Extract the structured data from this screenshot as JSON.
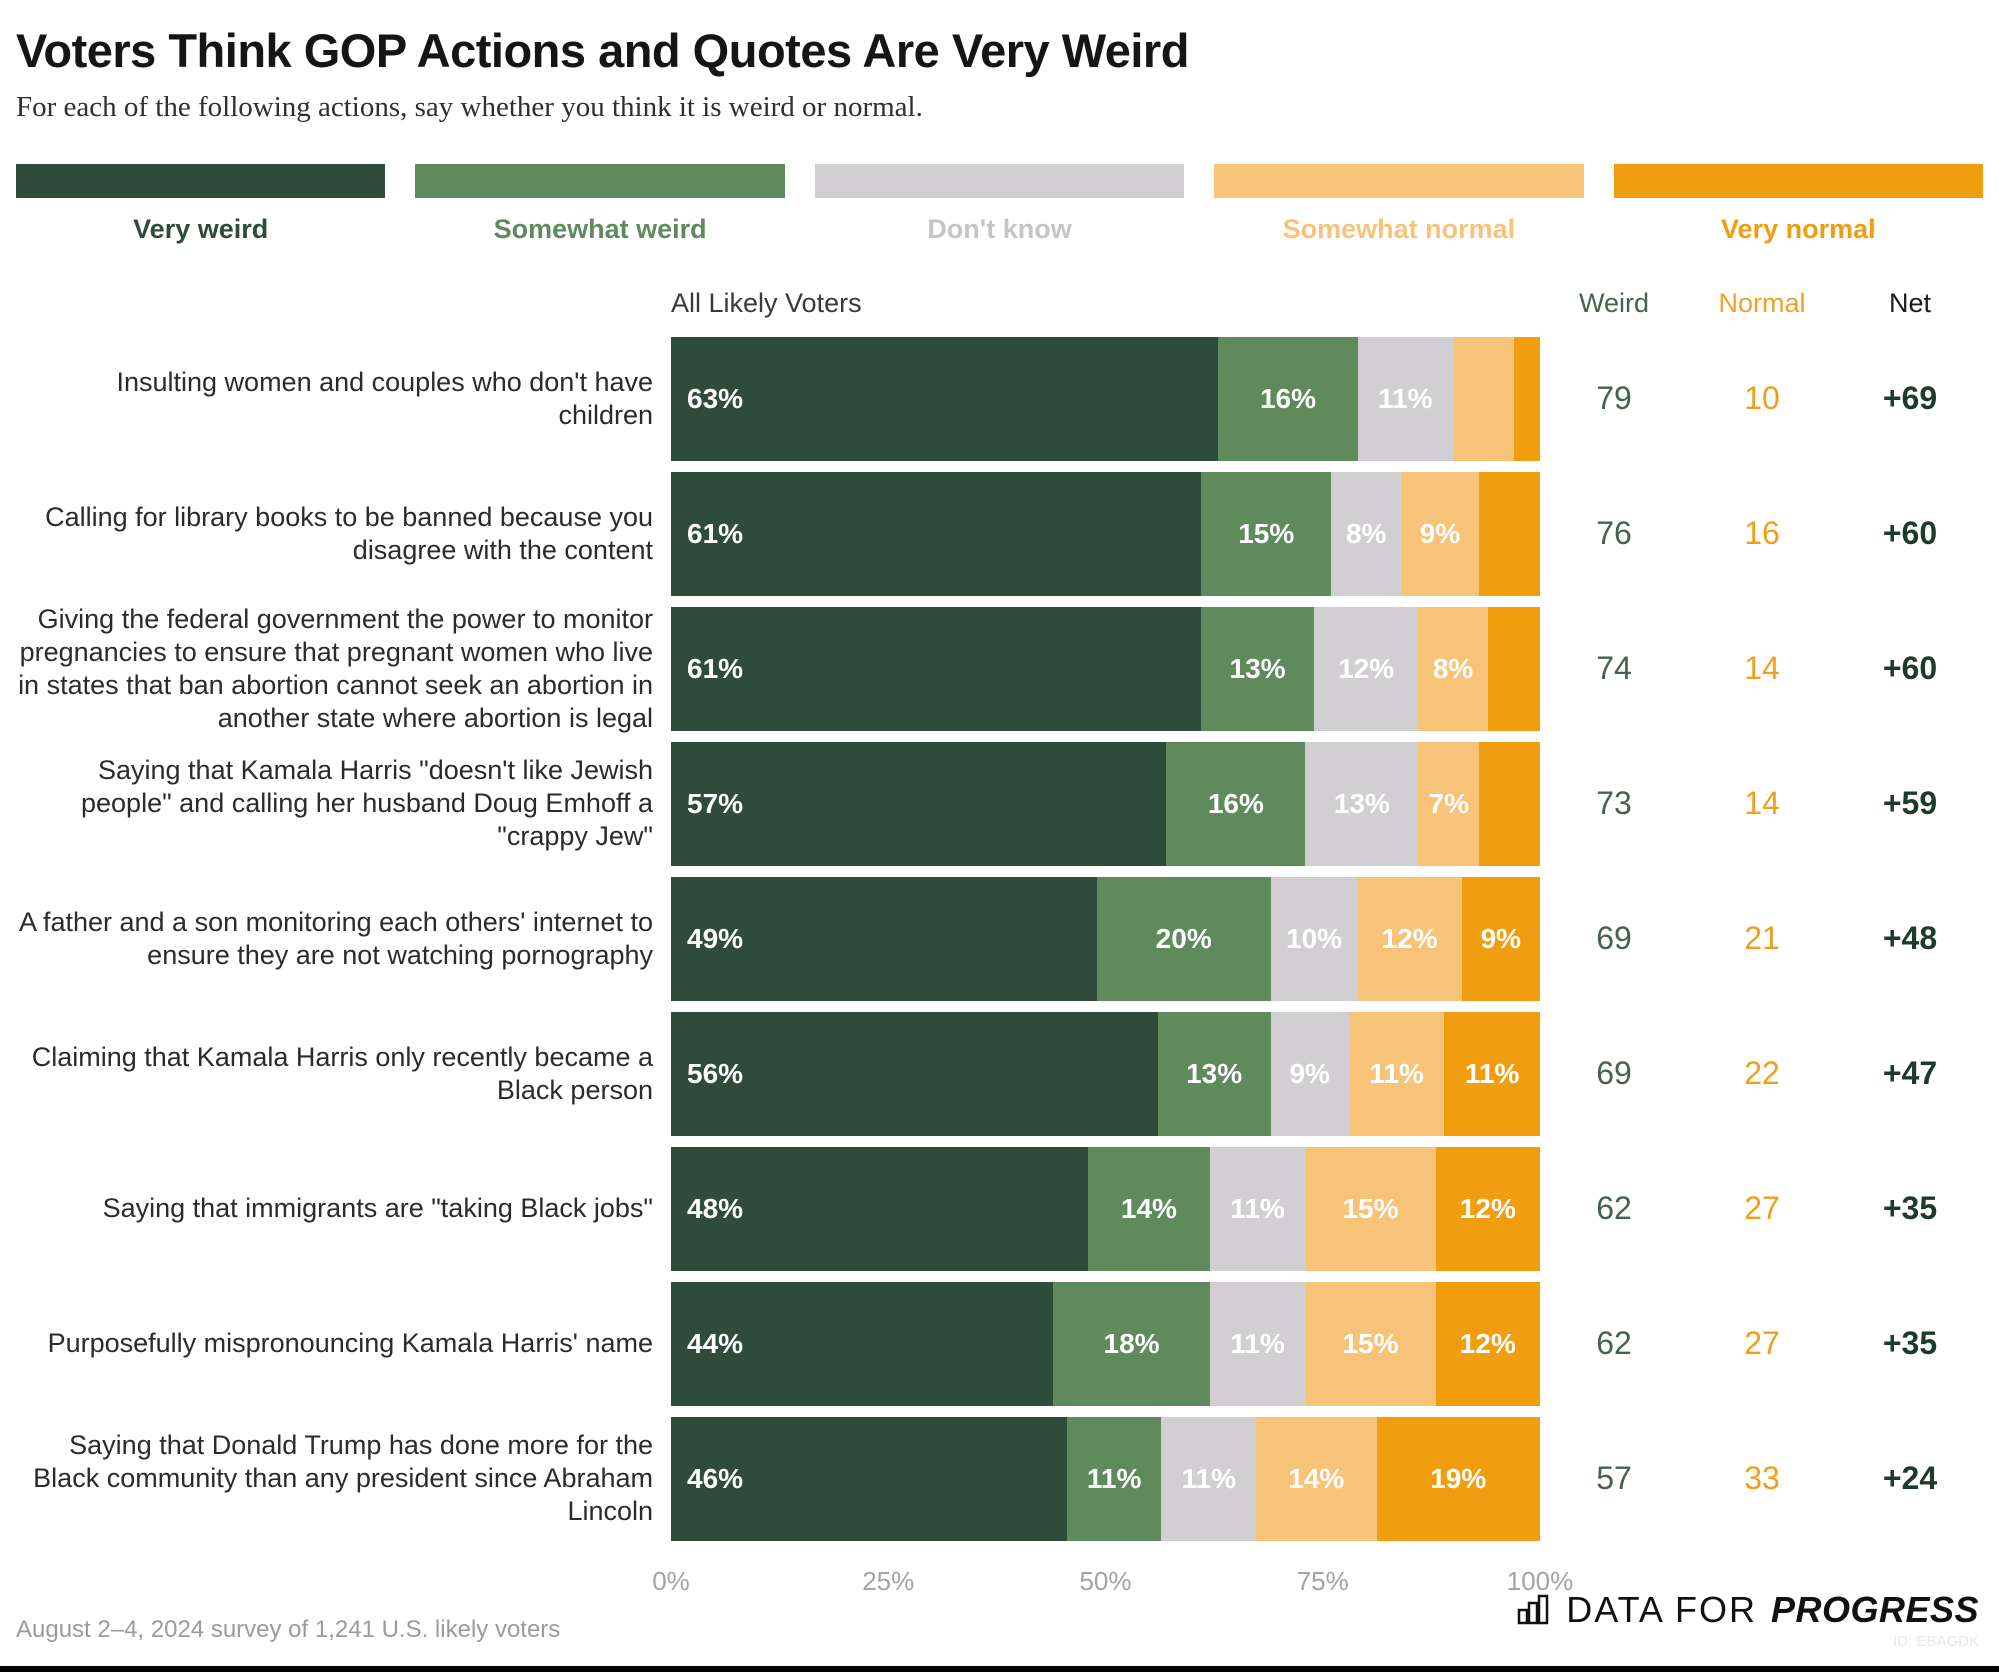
{
  "title": "Voters Think GOP Actions and Quotes Are Very Weird",
  "subtitle": "For each of the following actions, say whether you think it is weird or normal.",
  "colors": {
    "very_weird": "#2f4c3b",
    "somewhat_weird": "#5e8a5c",
    "dont_know": "#d2cfd2",
    "dont_know_text": "#c7c4c7",
    "somewhat_normal": "#f7c379",
    "very_normal": "#f09d0f",
    "weird_value_text": "#46624f",
    "normal_value_text": "#f09e1e",
    "net_value_text": "#1d3b2c"
  },
  "legend": {
    "items": [
      {
        "key": "very_weird",
        "label": "Very weird"
      },
      {
        "key": "somewhat_weird",
        "label": "Somewhat weird"
      },
      {
        "key": "dont_know",
        "label": "Don't know"
      },
      {
        "key": "somewhat_normal",
        "label": "Somewhat normal"
      },
      {
        "key": "very_normal",
        "label": "Very normal"
      }
    ]
  },
  "columns": {
    "group_label": "All Likely Voters",
    "weird": "Weird",
    "normal": "Normal",
    "net": "Net"
  },
  "chart_data": {
    "type": "bar",
    "orientation": "horizontal",
    "stacked": true,
    "xlim": [
      0,
      100
    ],
    "x_ticks": [
      "0%",
      "25%",
      "50%",
      "75%",
      "100%"
    ],
    "series_labels": [
      "Very weird",
      "Somewhat weird",
      "Don't know",
      "Somewhat normal",
      "Very normal"
    ],
    "segment_keys": [
      "very_weird",
      "somewhat_weird",
      "dont_know",
      "somewhat_normal",
      "very_normal"
    ],
    "rows": [
      {
        "label": "Insulting women and couples who don't have children",
        "values": [
          63,
          16,
          11,
          7,
          3
        ],
        "show_labels": [
          true,
          true,
          true,
          false,
          false
        ],
        "weird": "79",
        "normal": "10",
        "net": "+69"
      },
      {
        "label": "Calling for library books to be banned because you disagree with the content",
        "values": [
          61,
          15,
          8,
          9,
          7
        ],
        "show_labels": [
          true,
          true,
          true,
          true,
          false
        ],
        "weird": "76",
        "normal": "16",
        "net": "+60"
      },
      {
        "label": "Giving the federal government the power to monitor pregnancies to ensure that pregnant women who live in states that ban abortion cannot seek an abortion in another state where abortion is legal",
        "values": [
          61,
          13,
          12,
          8,
          6
        ],
        "show_labels": [
          true,
          true,
          true,
          true,
          false
        ],
        "weird": "74",
        "normal": "14",
        "net": "+60"
      },
      {
        "label": "Saying that Kamala Harris \"doesn't like Jewish people\" and calling her husband Doug Emhoff a \"crappy Jew\"",
        "values": [
          57,
          16,
          13,
          7,
          7
        ],
        "show_labels": [
          true,
          true,
          true,
          true,
          false
        ],
        "weird": "73",
        "normal": "14",
        "net": "+59"
      },
      {
        "label": "A father and a son monitoring each others' internet to ensure they are not watching pornography",
        "values": [
          49,
          20,
          10,
          12,
          9
        ],
        "show_labels": [
          true,
          true,
          true,
          true,
          true
        ],
        "weird": "69",
        "normal": "21",
        "net": "+48"
      },
      {
        "label": "Claiming that Kamala Harris only recently became a Black person",
        "values": [
          56,
          13,
          9,
          11,
          11
        ],
        "show_labels": [
          true,
          true,
          true,
          true,
          true
        ],
        "weird": "69",
        "normal": "22",
        "net": "+47"
      },
      {
        "label": "Saying that immigrants are \"taking Black jobs\"",
        "values": [
          48,
          14,
          11,
          15,
          12
        ],
        "show_labels": [
          true,
          true,
          true,
          true,
          true
        ],
        "weird": "62",
        "normal": "27",
        "net": "+35"
      },
      {
        "label": "Purposefully mispronouncing Kamala Harris' name",
        "values": [
          44,
          18,
          11,
          15,
          12
        ],
        "show_labels": [
          true,
          true,
          true,
          true,
          true
        ],
        "weird": "62",
        "normal": "27",
        "net": "+35"
      },
      {
        "label": "Saying that Donald Trump has done more for the Black community than any president since Abraham Lincoln",
        "values": [
          46,
          11,
          11,
          14,
          19
        ],
        "show_labels": [
          true,
          true,
          true,
          true,
          true
        ],
        "weird": "57",
        "normal": "33",
        "net": "+24"
      }
    ]
  },
  "footer": {
    "source": "August 2–4, 2024 survey of 1,241 U.S. likely voters",
    "logo_prefix": "DATA FOR",
    "logo_suffix": "PROGRESS",
    "id_text": "ID: EBAGDK"
  }
}
